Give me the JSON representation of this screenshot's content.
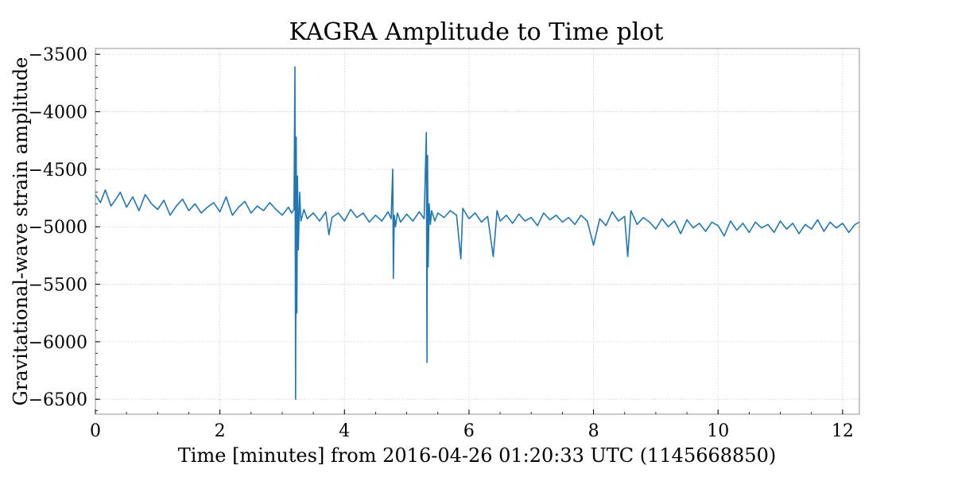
{
  "chart_data": {
    "type": "line",
    "title": "KAGRA Amplitude to Time plot",
    "xlabel": "Time [minutes] from 2016-04-26 01:20:33 UTC (1145668850)",
    "ylabel": "Gravitational-wave strain amplitude",
    "xlim": [
      0,
      12.27
    ],
    "ylim": [
      -6630,
      -3450
    ],
    "x_ticks": [
      0,
      2,
      4,
      6,
      8,
      10,
      12
    ],
    "x_tick_labels": [
      "0",
      "2",
      "4",
      "6",
      "8",
      "10",
      "12"
    ],
    "y_ticks": [
      -3500,
      -4000,
      -4500,
      -5000,
      -5500,
      -6000,
      -6500
    ],
    "y_tick_labels": [
      "−3500",
      "−4000",
      "−4500",
      "−5000",
      "−5500",
      "−6000",
      "−6500"
    ],
    "grid": true,
    "line_color": "#1f77b4",
    "series": [
      {
        "x": [
          0.0,
          0.08,
          0.16,
          0.25,
          0.33,
          0.4,
          0.5,
          0.6,
          0.7,
          0.8,
          0.9,
          1.0,
          1.1,
          1.2,
          1.3,
          1.4,
          1.5,
          1.6,
          1.7,
          1.8,
          1.9,
          2.0,
          2.1,
          2.2,
          2.3,
          2.4,
          2.5,
          2.6,
          2.7,
          2.8,
          2.9,
          3.0,
          3.1,
          3.15,
          3.19,
          3.205,
          3.215,
          3.225,
          3.235,
          3.245,
          3.26,
          3.28,
          3.3,
          3.35,
          3.4,
          3.5,
          3.6,
          3.7,
          3.75,
          3.8,
          3.9,
          4.0,
          4.1,
          4.2,
          4.3,
          4.4,
          4.5,
          4.6,
          4.7,
          4.75,
          4.775,
          4.785,
          4.8,
          4.82,
          4.85,
          4.9,
          5.0,
          5.1,
          5.2,
          5.28,
          5.315,
          5.325,
          5.335,
          5.345,
          5.36,
          5.38,
          5.4,
          5.45,
          5.5,
          5.6,
          5.7,
          5.8,
          5.87,
          5.9,
          6.0,
          6.1,
          6.2,
          6.3,
          6.39,
          6.45,
          6.5,
          6.6,
          6.7,
          6.8,
          6.9,
          7.0,
          7.1,
          7.2,
          7.3,
          7.4,
          7.5,
          7.6,
          7.7,
          7.8,
          7.9,
          8.0,
          8.1,
          8.2,
          8.3,
          8.4,
          8.5,
          8.55,
          8.6,
          8.7,
          8.8,
          8.9,
          9.0,
          9.1,
          9.2,
          9.3,
          9.4,
          9.5,
          9.6,
          9.7,
          9.8,
          9.9,
          10.0,
          10.1,
          10.2,
          10.3,
          10.4,
          10.5,
          10.6,
          10.7,
          10.8,
          10.9,
          11.0,
          11.1,
          11.2,
          11.3,
          11.4,
          11.5,
          11.6,
          11.7,
          11.8,
          11.9,
          12.0,
          12.1,
          12.2,
          12.27
        ],
        "y": [
          -4720,
          -4790,
          -4680,
          -4820,
          -4760,
          -4700,
          -4830,
          -4740,
          -4860,
          -4720,
          -4800,
          -4850,
          -4770,
          -4900,
          -4820,
          -4760,
          -4860,
          -4800,
          -4880,
          -4830,
          -4790,
          -4870,
          -4740,
          -4900,
          -4830,
          -4780,
          -4880,
          -4820,
          -4860,
          -4790,
          -4850,
          -4900,
          -4830,
          -4880,
          -4850,
          -3610,
          -6500,
          -4220,
          -5750,
          -4560,
          -5200,
          -4700,
          -4950,
          -4850,
          -4930,
          -4880,
          -4950,
          -4870,
          -5070,
          -4920,
          -4880,
          -4950,
          -4850,
          -4920,
          -4880,
          -4960,
          -4900,
          -4950,
          -4870,
          -4930,
          -4500,
          -5450,
          -4900,
          -5000,
          -4880,
          -4960,
          -4890,
          -4950,
          -4870,
          -4930,
          -4180,
          -6180,
          -4380,
          -5350,
          -4800,
          -4980,
          -4860,
          -4950,
          -4880,
          -4920,
          -4860,
          -4900,
          -5280,
          -4840,
          -4930,
          -4880,
          -4960,
          -4910,
          -5260,
          -4860,
          -4950,
          -4900,
          -4970,
          -4890,
          -4950,
          -4920,
          -4990,
          -4880,
          -4940,
          -4900,
          -4960,
          -4920,
          -4980,
          -4900,
          -4950,
          -5160,
          -4930,
          -4990,
          -4870,
          -4950,
          -4910,
          -5260,
          -4860,
          -4980,
          -4920,
          -4960,
          -5020,
          -4930,
          -5000,
          -4950,
          -5060,
          -4940,
          -5010,
          -4970,
          -5040,
          -4960,
          -4990,
          -5080,
          -4950,
          -5030,
          -4970,
          -5050,
          -4960,
          -5010,
          -4980,
          -5050,
          -4950,
          -5020,
          -4970,
          -5060,
          -4980,
          -5020,
          -4940,
          -5040,
          -4960,
          -5010,
          -4970,
          -5050,
          -4980,
          -4960
        ]
      }
    ]
  }
}
